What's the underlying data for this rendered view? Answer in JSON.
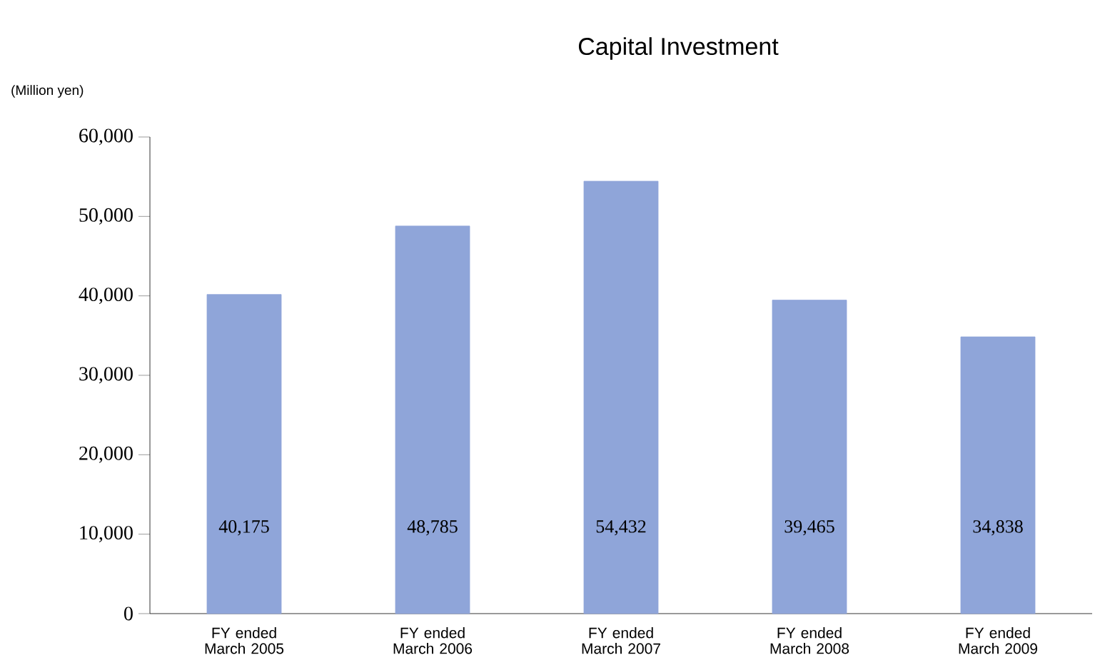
{
  "chart_data": {
    "type": "bar",
    "title": "Capital Investment",
    "ylabel": "(Million yen)",
    "categories": [
      "FY ended March 2005",
      "FY ended March 2006",
      "FY ended March 2007",
      "FY ended March 2008",
      "FY ended March 2009"
    ],
    "values": [
      40175,
      48785,
      54432,
      39465,
      34838
    ],
    "value_labels": [
      "40,175",
      "48,785",
      "54,432",
      "39,465",
      "34,838"
    ],
    "color": "#8fa5d9",
    "ylim": [
      0,
      60000
    ],
    "yticks": [
      0,
      {
        "value": 10000,
        "label": "10,000"
      },
      {
        "value": 20000,
        "label": "20,000"
      },
      {
        "value": 30000,
        "label": "30,000"
      },
      {
        "value": 40000,
        "label": "40,000"
      },
      {
        "value": 50000,
        "label": "50,000"
      },
      {
        "value": 60000,
        "label": "60,000"
      }
    ],
    "grid": false
  }
}
